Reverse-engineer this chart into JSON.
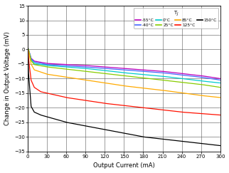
{
  "xlabel": "Output Current (mA)",
  "ylabel": "Change in Output Voltage (mV)",
  "xlim": [
    0,
    300
  ],
  "ylim": [
    -35,
    15
  ],
  "xticks": [
    0,
    30,
    60,
    90,
    120,
    150,
    180,
    210,
    240,
    270,
    300
  ],
  "yticks": [
    -35,
    -30,
    -25,
    -20,
    -15,
    -10,
    -5,
    0,
    5,
    10,
    15
  ],
  "series": [
    {
      "label": "-55°C",
      "color": "#bb00bb",
      "x": [
        0,
        1,
        5,
        10,
        30,
        90,
        150,
        210,
        270,
        300
      ],
      "y": [
        0.5,
        0.0,
        -3.0,
        -4.0,
        -4.8,
        -5.5,
        -6.5,
        -7.5,
        -9.0,
        -10.0
      ]
    },
    {
      "label": "-40°C",
      "color": "#4466ff",
      "x": [
        0,
        1,
        5,
        10,
        30,
        90,
        150,
        210,
        270,
        300
      ],
      "y": [
        0.5,
        0.0,
        -3.2,
        -4.3,
        -5.2,
        -6.0,
        -7.0,
        -8.0,
        -9.5,
        -10.5
      ]
    },
    {
      "label": "0°C",
      "color": "#00cccc",
      "x": [
        0,
        1,
        5,
        10,
        30,
        90,
        150,
        210,
        270,
        300
      ],
      "y": [
        0.5,
        0.0,
        -3.5,
        -4.8,
        -5.5,
        -6.5,
        -8.0,
        -9.2,
        -10.8,
        -11.5
      ]
    },
    {
      "label": "25°C",
      "color": "#88cc00",
      "x": [
        0,
        1,
        5,
        10,
        30,
        90,
        150,
        210,
        270,
        300
      ],
      "y": [
        0.5,
        0.0,
        -3.8,
        -5.2,
        -6.0,
        -7.5,
        -9.0,
        -10.5,
        -12.0,
        -13.0
      ]
    },
    {
      "label": "85°C",
      "color": "#ffaa00",
      "x": [
        0,
        1,
        5,
        10,
        30,
        90,
        150,
        210,
        270,
        300
      ],
      "y": [
        0.5,
        -0.5,
        -5.0,
        -7.0,
        -8.5,
        -10.5,
        -12.5,
        -14.0,
        -15.8,
        -16.5
      ]
    },
    {
      "label": "125°C",
      "color": "#ff1100",
      "x": [
        0,
        1,
        5,
        10,
        20,
        60,
        120,
        180,
        240,
        300
      ],
      "y": [
        0.5,
        -3.0,
        -10.5,
        -13.0,
        -14.5,
        -16.5,
        -18.5,
        -20.0,
        -21.5,
        -22.5
      ]
    },
    {
      "label": "150°C",
      "color": "#000000",
      "x": [
        0,
        1,
        5,
        10,
        20,
        60,
        120,
        180,
        240,
        300
      ],
      "y": [
        0.5,
        -8.0,
        -19.5,
        -21.5,
        -22.5,
        -25.0,
        -27.5,
        -30.0,
        -31.5,
        -33.0
      ]
    }
  ],
  "background_color": "#ffffff"
}
